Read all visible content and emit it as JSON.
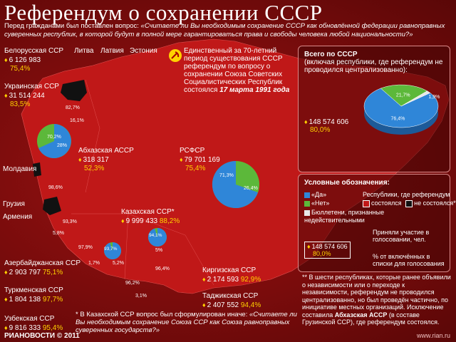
{
  "title": "Референдум о сохранении СССР",
  "question_lead": "Перед гражданами был поставлен вопрос: ",
  "question_text": "«Считаете ли Вы необходимым сохранение СССР как обновлённой федерации равноправных суверенных республик, в которой будут в полной мере гарантироваться права и свободы человека любой национальности?»",
  "center_note": {
    "text": "Единственный за 70-летний период существования СССР референдум по вопросу о сохранении Союза Советских Социалистических Республик состоялся ",
    "date": "17 марта 1991 года"
  },
  "republics": [
    {
      "name": "Белорусская ССР",
      "votes": "6 126 983",
      "pct": "75,4%"
    },
    {
      "name": "Украинская ССР",
      "votes": "31 514 244",
      "pct": "83,5%"
    },
    {
      "name": "Абхазская АССР",
      "votes": "318 317",
      "pct": "52,3%"
    },
    {
      "name": "РСФСР",
      "votes": "79 701 169",
      "pct": "75,4%"
    },
    {
      "name": "Казахская ССР*",
      "votes": "9 999 433",
      "pct": "88,2%"
    },
    {
      "name": "Азербайджанская ССР",
      "votes": "2 903 797",
      "pct": "75,1%"
    },
    {
      "name": "Туркменская ССР",
      "votes": "1 804 138",
      "pct": "97,7%"
    },
    {
      "name": "Узбекская ССР",
      "votes": "9 816 333",
      "pct": "95,4%"
    },
    {
      "name": "Киргизская ССР",
      "votes": "2 174 593",
      "pct": "92,9%"
    },
    {
      "name": "Таджикская ССР",
      "votes": "2 407 552",
      "pct": "94,4%"
    }
  ],
  "non_participating": [
    "Литва",
    "Латвия",
    "Эстония",
    "Молдавия",
    "Грузия",
    "Армения"
  ],
  "map_pies": [
    {
      "yes": "70,2%",
      "no": "28%"
    },
    {
      "yes": "71,3%",
      "no": "26,4%"
    },
    {
      "yes": "94,1%",
      "no": "5%"
    },
    {
      "yes": "93,7%",
      "no": "5,2%"
    }
  ],
  "map_values": [
    "82,7%",
    "16,1%",
    "98,6%",
    "93,3%",
    "5,8%",
    "97,9%",
    "1,7%",
    "96,4%",
    "96,2%",
    "3,1%"
  ],
  "total": {
    "title": "Всего по СССР",
    "subtitle": "(включая республики, где референдум не проводился централизованно):",
    "yes_pct": 76.4,
    "no_pct": 21.7,
    "other_pct": 1.9,
    "yes_label": "76,4%",
    "no_label": "21,7%",
    "other_label": "1,9%",
    "votes": "148 574 606",
    "votes_pct": "80,0%",
    "colors": {
      "yes": "#2f86d8",
      "no": "#5cb83a",
      "other": "#e8e8e8"
    }
  },
  "legend": {
    "title": "Условные обозначения:",
    "yes": "«Да»",
    "no": "«Нет»",
    "republics_where": "Республики, где референдум",
    "held": "состоялся",
    "not_held": "не состоялся**",
    "bulletins": "Бюллетени, признанные недействительными",
    "took_part": "Приняли участие в голосовании, чел.",
    "sample_votes": "148 574 606",
    "sample_pct": "80,0%",
    "pct_included": "% от включённых в списки для голосования"
  },
  "note2": "** В шести республиках, которые ранее объявили о независимости или о переходе к независимости, референдум не проводился централизованно, но был проведён частично, по инициативе местных организаций. Исключение составила ",
  "note2_bold": "Абхазская АССР",
  "note2_end": " (в составе Грузинской ССР), где референдум состоялся.",
  "footnote_lead": "* В Казахской ССР вопрос был сформулирован иначе: ",
  "footnote_text": "«Считаете ли Вы необходимым сохранение Союза ССР как Союза равноправных суверенных государств?»",
  "footer_left": "РИАНОВОСТИ © 2011",
  "footer_right": "www.rian.ru"
}
